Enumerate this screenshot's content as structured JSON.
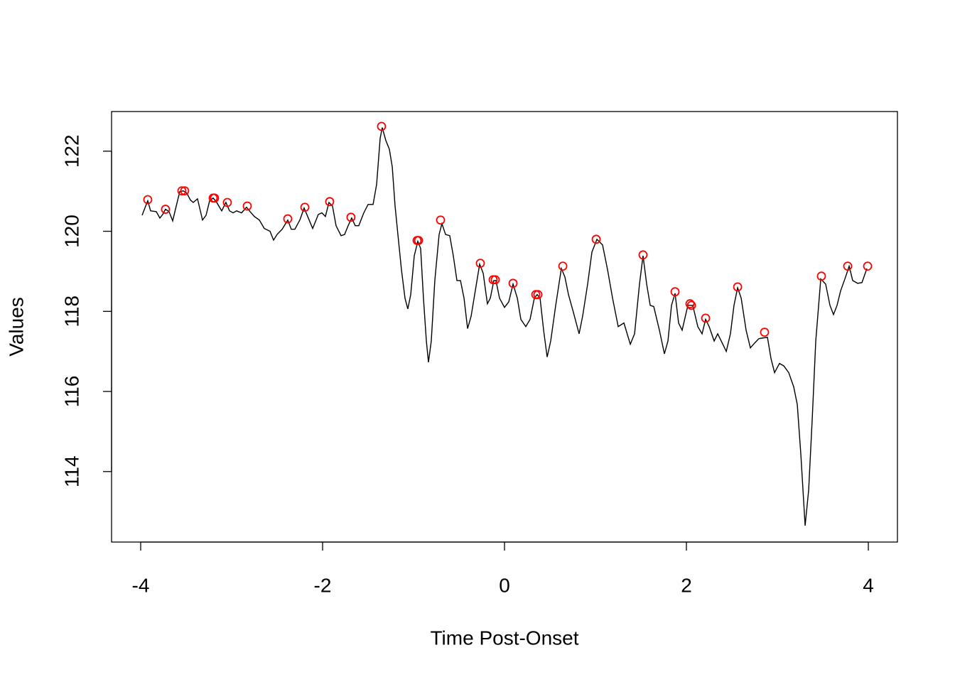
{
  "chart_data": {
    "type": "line",
    "xlabel": "Time Post-Onset",
    "ylabel": "Values",
    "xlim": [
      -4.32,
      4.32
    ],
    "ylim": [
      112.24,
      122.99
    ],
    "xticks": [
      -4,
      -2,
      0,
      2,
      4
    ],
    "yticks": [
      114,
      116,
      118,
      120,
      122
    ],
    "color": "#000000",
    "x": [
      -3.984,
      -3.945,
      -3.922,
      -3.891,
      -3.828,
      -3.789,
      -3.758,
      -3.727,
      -3.688,
      -3.648,
      -3.609,
      -3.57,
      -3.531,
      -3.492,
      -3.453,
      -3.422,
      -3.375,
      -3.32,
      -3.281,
      -3.242,
      -3.203,
      -3.164,
      -3.109,
      -3.063,
      -3.023,
      -2.984,
      -2.945,
      -2.891,
      -2.836,
      -2.797,
      -2.75,
      -2.695,
      -2.641,
      -2.578,
      -2.539,
      -2.5,
      -2.445,
      -2.383,
      -2.344,
      -2.305,
      -2.25,
      -2.203,
      -2.164,
      -2.109,
      -2.047,
      -2.008,
      -1.969,
      -1.93,
      -1.891,
      -1.852,
      -1.797,
      -1.758,
      -1.719,
      -1.68,
      -1.641,
      -1.602,
      -1.547,
      -1.5,
      -1.445,
      -1.406,
      -1.367,
      -1.344,
      -1.305,
      -1.266,
      -1.234,
      -1.203,
      -1.172,
      -1.133,
      -1.094,
      -1.063,
      -1.031,
      -0.992,
      -0.953,
      -0.922,
      -0.891,
      -0.859,
      -0.836,
      -0.805,
      -0.766,
      -0.719,
      -0.688,
      -0.648,
      -0.602,
      -0.563,
      -0.523,
      -0.484,
      -0.445,
      -0.406,
      -0.367,
      -0.328,
      -0.273,
      -0.234,
      -0.188,
      -0.156,
      -0.117,
      -0.094,
      -0.055,
      0.0,
      0.047,
      0.094,
      0.141,
      0.18,
      0.234,
      0.281,
      0.328,
      0.359,
      0.391,
      0.43,
      0.469,
      0.508,
      0.563,
      0.625,
      0.664,
      0.703,
      0.758,
      0.82,
      0.859,
      0.914,
      0.961,
      1.016,
      1.078,
      1.133,
      1.188,
      1.25,
      1.313,
      1.383,
      1.43,
      1.484,
      1.523,
      1.563,
      1.602,
      1.641,
      1.703,
      1.758,
      1.797,
      1.836,
      1.875,
      1.914,
      1.953,
      2.016,
      2.07,
      2.125,
      2.172,
      2.211,
      2.25,
      2.305,
      2.344,
      2.383,
      2.438,
      2.484,
      2.523,
      2.563,
      2.602,
      2.656,
      2.703,
      2.75,
      2.797,
      2.852,
      2.891,
      2.93,
      2.969,
      3.023,
      3.07,
      3.125,
      3.18,
      3.219,
      3.258,
      3.305,
      3.344,
      3.383,
      3.422,
      3.477,
      3.531,
      3.578,
      3.617,
      3.656,
      3.695,
      3.75,
      3.789,
      3.828,
      3.883,
      3.93,
      3.984
    ],
    "values": [
      120.4,
      120.63,
      120.76,
      120.51,
      120.49,
      120.33,
      120.42,
      120.55,
      120.49,
      120.26,
      120.63,
      120.99,
      121.01,
      120.95,
      120.78,
      120.72,
      120.81,
      120.28,
      120.4,
      120.76,
      120.83,
      120.72,
      120.51,
      120.72,
      120.51,
      120.46,
      120.51,
      120.46,
      120.6,
      120.49,
      120.37,
      120.28,
      120.07,
      120.0,
      119.78,
      119.92,
      120.05,
      120.28,
      120.05,
      120.05,
      120.28,
      120.58,
      120.37,
      120.07,
      120.42,
      120.46,
      120.37,
      120.72,
      120.63,
      120.14,
      119.89,
      119.92,
      120.14,
      120.33,
      120.14,
      120.14,
      120.46,
      120.67,
      120.67,
      121.17,
      122.32,
      122.59,
      122.27,
      122.05,
      121.61,
      120.63,
      119.92,
      119.04,
      118.33,
      118.06,
      118.42,
      119.39,
      119.75,
      119.57,
      118.33,
      117.26,
      116.73,
      117.26,
      118.77,
      119.92,
      120.19,
      119.92,
      119.89,
      119.39,
      118.77,
      118.77,
      118.33,
      117.57,
      117.88,
      118.42,
      119.18,
      118.95,
      118.19,
      118.33,
      118.77,
      118.77,
      118.33,
      118.1,
      118.24,
      118.68,
      118.33,
      117.8,
      117.62,
      117.8,
      118.33,
      118.42,
      118.33,
      117.53,
      116.86,
      117.26,
      118.15,
      119.07,
      118.86,
      118.42,
      117.97,
      117.44,
      117.88,
      118.68,
      119.48,
      119.8,
      119.66,
      119.04,
      118.33,
      117.62,
      117.71,
      117.18,
      117.44,
      118.68,
      119.39,
      118.68,
      118.15,
      118.12,
      117.53,
      116.94,
      117.26,
      118.15,
      118.45,
      117.71,
      117.53,
      118.15,
      118.15,
      117.62,
      117.44,
      117.8,
      117.62,
      117.26,
      117.44,
      117.26,
      117.0,
      117.44,
      118.15,
      118.59,
      118.33,
      117.53,
      117.09,
      117.21,
      117.32,
      117.34,
      117.35,
      116.82,
      116.47,
      116.7,
      116.64,
      116.47,
      116.11,
      115.67,
      114.43,
      112.65,
      113.54,
      115.31,
      117.26,
      118.81,
      118.68,
      118.15,
      117.92,
      118.15,
      118.51,
      118.86,
      119.13,
      118.77,
      118.7,
      118.72,
      119.07
    ],
    "peaks": {
      "color": "#ff0000",
      "x": [
        -3.922,
        -3.727,
        -3.547,
        -3.516,
        -3.203,
        -3.188,
        -3.047,
        -2.828,
        -2.383,
        -2.195,
        -1.922,
        -1.688,
        -1.352,
        -0.961,
        -0.945,
        -0.703,
        -0.266,
        -0.125,
        -0.102,
        0.094,
        0.344,
        0.367,
        0.641,
        1.008,
        1.523,
        1.875,
        2.039,
        2.055,
        2.211,
        2.563,
        2.859,
        3.484,
        3.773,
        3.992
      ],
      "values": [
        120.79,
        120.55,
        121.01,
        121.01,
        120.83,
        120.83,
        120.72,
        120.63,
        120.31,
        120.6,
        120.74,
        120.35,
        122.62,
        119.77,
        119.77,
        120.28,
        119.2,
        118.79,
        118.79,
        118.7,
        118.42,
        118.42,
        119.13,
        119.8,
        119.41,
        118.49,
        118.19,
        118.15,
        117.83,
        118.61,
        117.48,
        118.88,
        119.13,
        119.13
      ]
    }
  }
}
